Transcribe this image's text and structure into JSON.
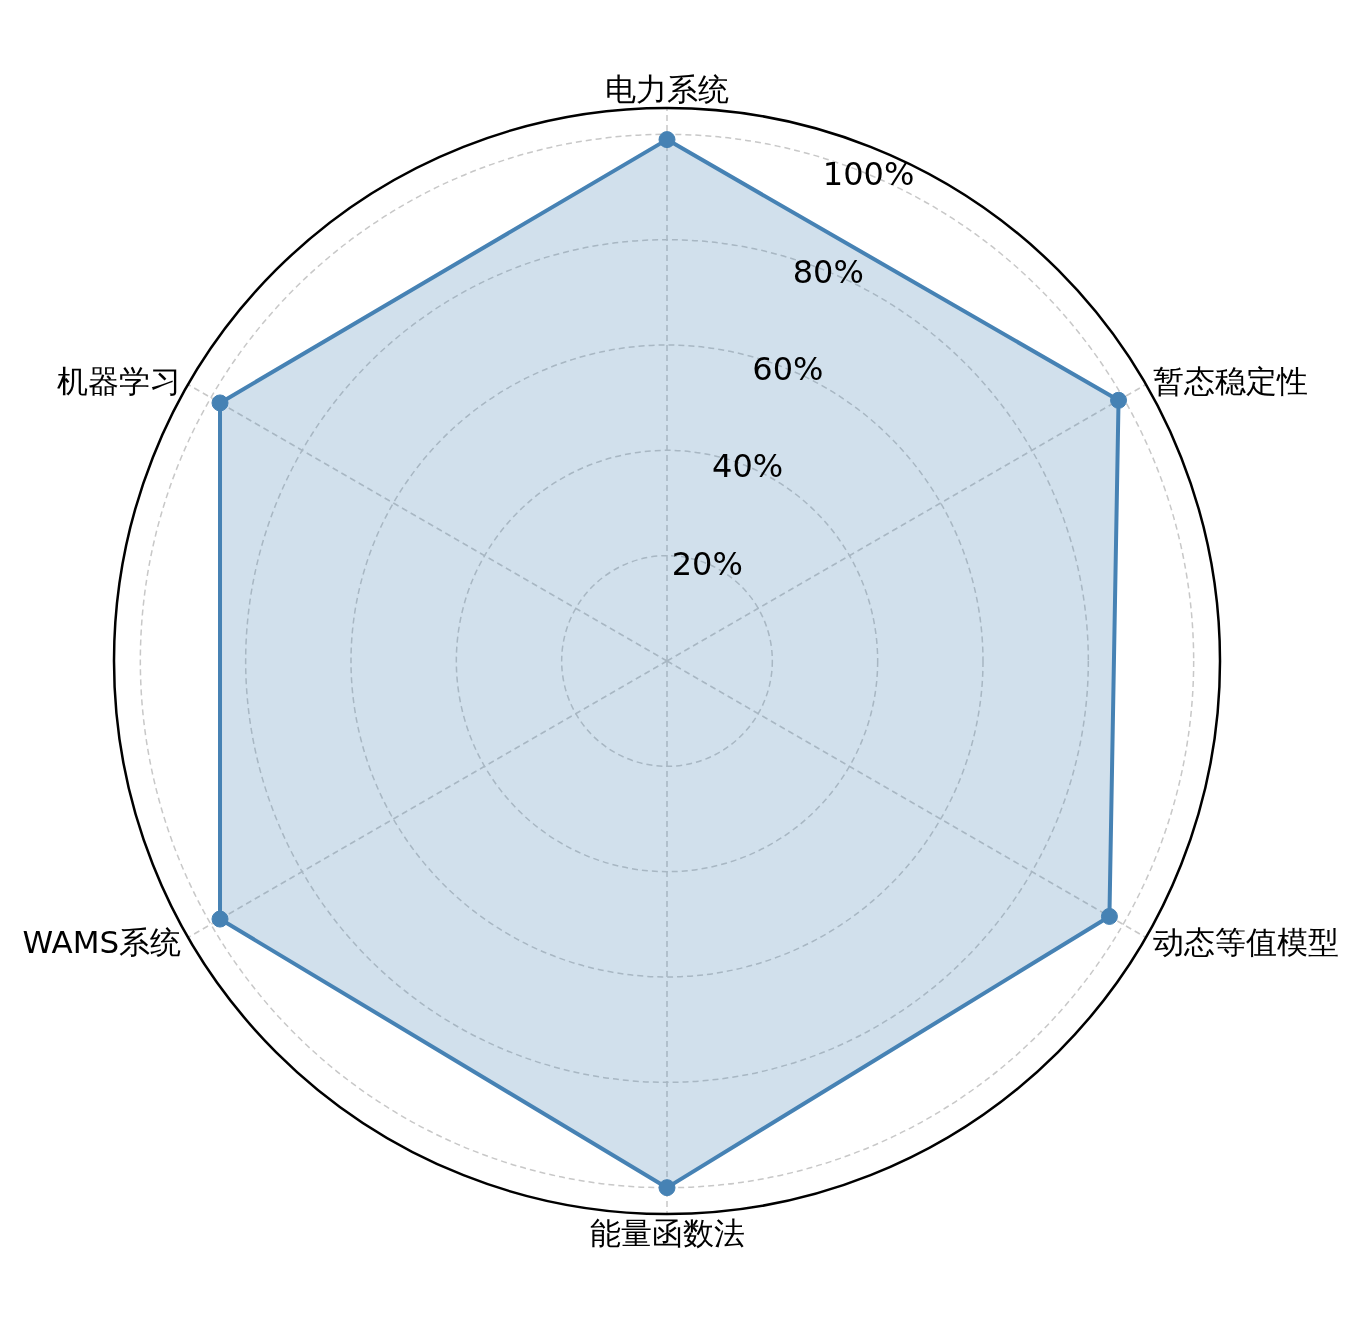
{
  "chart_data": {
    "type": "radar",
    "categories": [
      "电力系统",
      "暂态稳定性",
      "动态等值模型",
      "能量函数法",
      "WAMS系统",
      "机器学习"
    ],
    "series": [
      {
        "color": "#4682b4",
        "values": [
          99,
          99,
          97,
          100,
          98,
          98
        ]
      }
    ],
    "ylim": [
      0,
      105
    ],
    "yticks": [
      {
        "value": 20,
        "label": "20%"
      },
      {
        "value": 40,
        "label": "40%"
      },
      {
        "value": 60,
        "label": "60%"
      },
      {
        "value": 80,
        "label": "80%"
      },
      {
        "value": 100,
        "label": "100%"
      }
    ],
    "grid": true,
    "marker": "circle",
    "line_style": "solid"
  }
}
